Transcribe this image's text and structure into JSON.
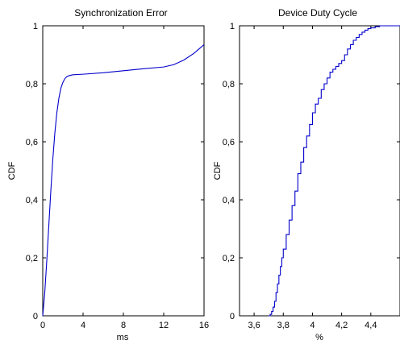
{
  "chart_data": [
    {
      "type": "line",
      "title": "Synchronization Error",
      "xlabel": "ms",
      "ylabel": "CDF",
      "xlim": [
        0,
        16
      ],
      "ylim": [
        0,
        1
      ],
      "x_ticks": [
        "0",
        "4",
        "8",
        "12",
        "16"
      ],
      "y_ticks": [
        "0",
        "0,2",
        "0,4",
        "0,6",
        "0,8",
        "1"
      ],
      "grid": false,
      "series": [
        {
          "color": "#0000cc",
          "x": [
            0.0,
            0.2,
            0.4,
            0.6,
            0.8,
            1.0,
            1.2,
            1.4,
            1.6,
            1.8,
            2.0,
            2.2,
            2.4,
            2.7,
            3.0,
            4.0,
            6.0,
            8.0,
            10.0,
            12.0,
            13.0,
            14.0,
            15.0,
            16.0
          ],
          "y": [
            0.0,
            0.08,
            0.19,
            0.31,
            0.43,
            0.54,
            0.63,
            0.7,
            0.75,
            0.785,
            0.805,
            0.818,
            0.825,
            0.829,
            0.831,
            0.833,
            0.838,
            0.845,
            0.852,
            0.858,
            0.866,
            0.882,
            0.905,
            0.935
          ]
        }
      ]
    },
    {
      "type": "line",
      "title": "Device Duty Cycle",
      "xlabel": "%",
      "ylabel": "CDF",
      "xlim": [
        3.5,
        4.6
      ],
      "ylim": [
        0,
        1
      ],
      "x_ticks": [
        "3,6",
        "3,8",
        "4",
        "4,2",
        "4,4"
      ],
      "y_ticks": [
        "0",
        "0,2",
        "0,4",
        "0,6",
        "0,8",
        "1"
      ],
      "grid": false,
      "series": [
        {
          "color": "#0000cc",
          "x": [
            3.7,
            3.71,
            3.72,
            3.73,
            3.74,
            3.75,
            3.76,
            3.77,
            3.78,
            3.79,
            3.8,
            3.82,
            3.84,
            3.86,
            3.88,
            3.9,
            3.92,
            3.94,
            3.96,
            3.98,
            4.0,
            4.02,
            4.04,
            4.06,
            4.08,
            4.1,
            4.12,
            4.14,
            4.16,
            4.18,
            4.2,
            4.22,
            4.24,
            4.26,
            4.28,
            4.3,
            4.32,
            4.34,
            4.36,
            4.38,
            4.4,
            4.43,
            4.46
          ],
          "y": [
            0.0,
            0.005,
            0.015,
            0.03,
            0.05,
            0.08,
            0.11,
            0.14,
            0.17,
            0.2,
            0.23,
            0.28,
            0.33,
            0.38,
            0.43,
            0.49,
            0.53,
            0.58,
            0.62,
            0.66,
            0.7,
            0.73,
            0.75,
            0.78,
            0.8,
            0.82,
            0.84,
            0.85,
            0.86,
            0.87,
            0.88,
            0.9,
            0.92,
            0.935,
            0.95,
            0.96,
            0.97,
            0.978,
            0.985,
            0.99,
            0.993,
            0.997,
            1.0
          ]
        }
      ]
    }
  ]
}
